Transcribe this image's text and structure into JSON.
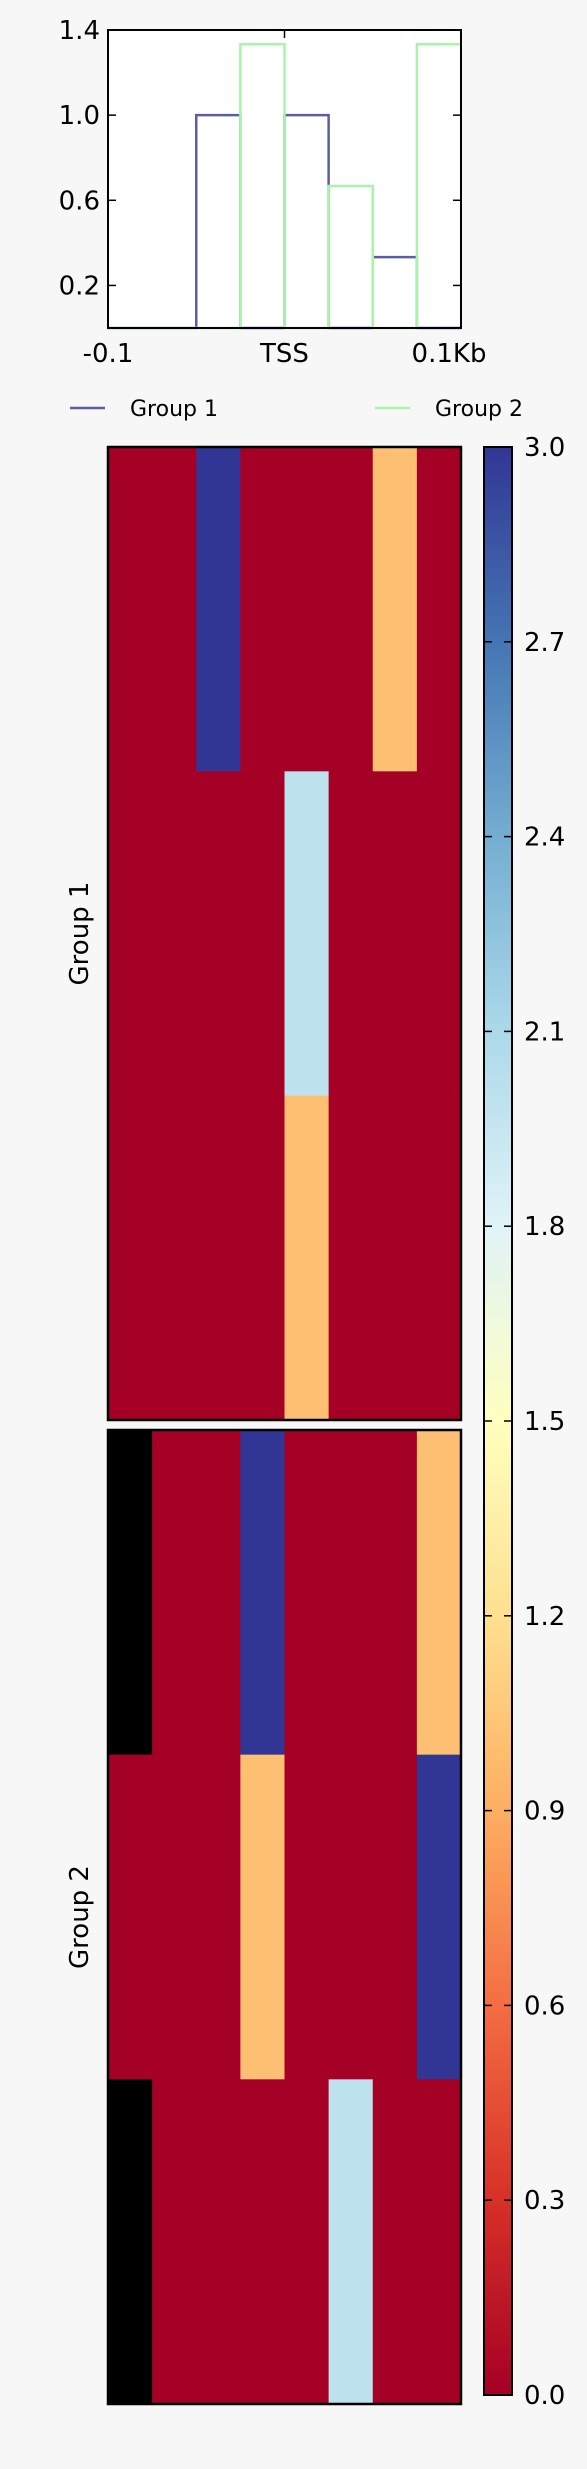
{
  "chart_data": [
    {
      "type": "line",
      "x_ticks": [
        "-0.1",
        "TSS",
        "0.1Kb"
      ],
      "y_ticks": [
        "0.2",
        "0.6",
        "1.0",
        "1.4"
      ],
      "ylim": [
        0,
        1.4
      ],
      "bins": 8,
      "legend_placement": "below",
      "series": [
        {
          "name": "Group 1",
          "color": "#5b5ea6",
          "values": [
            0,
            0,
            1.0,
            0,
            1.0,
            0,
            0.333,
            0
          ]
        },
        {
          "name": "Group 2",
          "color": "#a8f5a8",
          "values": [
            0,
            0,
            0,
            1.333,
            0,
            0.667,
            0,
            1.333
          ]
        }
      ]
    },
    {
      "type": "heatmap",
      "colorbar": {
        "min": 0.0,
        "max": 3.0,
        "ticks": [
          "0.0",
          "0.3",
          "0.6",
          "0.9",
          "1.2",
          "1.5",
          "1.8",
          "2.1",
          "2.4",
          "2.7",
          "3.0"
        ]
      },
      "groups": [
        {
          "label": "Group 1",
          "rows": [
            [
              0,
              0,
              3,
              0,
              0,
              0,
              1,
              0
            ],
            [
              0,
              0,
              0,
              0,
              2,
              0,
              0,
              0
            ],
            [
              0,
              0,
              0,
              0,
              1,
              0,
              0,
              0
            ]
          ]
        },
        {
          "label": "Group 2",
          "rows": [
            [
              null,
              0,
              0,
              3,
              0,
              0,
              0,
              1
            ],
            [
              0,
              0,
              0,
              1,
              0,
              0,
              0,
              3
            ],
            [
              null,
              0,
              0,
              0,
              0,
              2,
              0,
              0
            ]
          ]
        }
      ]
    }
  ]
}
